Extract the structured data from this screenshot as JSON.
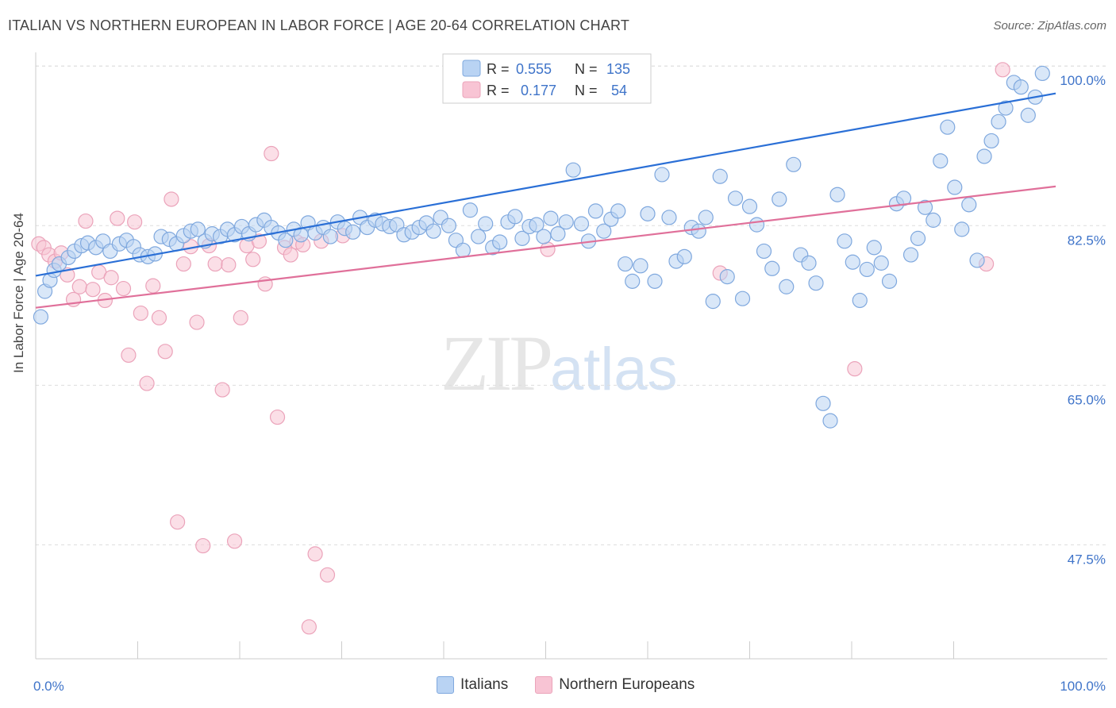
{
  "title": "ITALIAN VS NORTHERN EUROPEAN IN LABOR FORCE | AGE 20-64 CORRELATION CHART",
  "source": "Source: ZipAtlas.com",
  "watermark": {
    "zip": "ZIP",
    "atlas": "atlas"
  },
  "colors": {
    "italians_fill": "#b9d3f3",
    "italians_stroke": "#7fa8de",
    "italians_line": "#2a6fd6",
    "northern_fill": "#f8c4d4",
    "northern_stroke": "#eba3ba",
    "northern_line": "#e0709a",
    "axis_text": "#3f74c9",
    "grid": "#dddddd"
  },
  "legend": {
    "rows": [
      {
        "r_label": "R =",
        "r_value": "0.555",
        "n_label": "N =",
        "n_value": "135"
      },
      {
        "r_label": "R =",
        "r_value": "0.177",
        "n_label": "N =",
        "n_value": "54"
      }
    ]
  },
  "bottom_legend": [
    "Italians",
    "Northern Europeans"
  ],
  "chart_data": {
    "type": "scatter",
    "title": "ITALIAN VS NORTHERN EUROPEAN IN LABOR FORCE | AGE 20-64 CORRELATION CHART",
    "xlabel": "",
    "ylabel": "In Labor Force | Age 20-64",
    "xlim": [
      0,
      100
    ],
    "ylim": [
      35,
      101.5
    ],
    "x_tick_labels": [
      "0.0%",
      "100.0%"
    ],
    "y_ticks": [
      47.5,
      65.0,
      82.5,
      100.0
    ],
    "y_tick_labels": [
      "47.5%",
      "65.0%",
      "82.5%",
      "100.0%"
    ],
    "grid": true,
    "legend_position": "top-center",
    "series": [
      {
        "name": "Italians",
        "r": 0.555,
        "n": 135,
        "trend": {
          "x": [
            0,
            100
          ],
          "y": [
            77.0,
            97.0
          ]
        },
        "points": [
          [
            0.5,
            72.5
          ],
          [
            0.9,
            75.3
          ],
          [
            1.4,
            76.5
          ],
          [
            1.8,
            77.6
          ],
          [
            2.3,
            78.3
          ],
          [
            3.2,
            79
          ],
          [
            3.8,
            79.7
          ],
          [
            4.5,
            80.3
          ],
          [
            5.1,
            80.6
          ],
          [
            5.9,
            80.1
          ],
          [
            6.6,
            80.8
          ],
          [
            7.3,
            79.7
          ],
          [
            8.2,
            80.5
          ],
          [
            8.9,
            80.9
          ],
          [
            9.6,
            80.2
          ],
          [
            10.2,
            79.3
          ],
          [
            11.0,
            79.1
          ],
          [
            11.7,
            79.4
          ],
          [
            12.3,
            81.3
          ],
          [
            13.1,
            81
          ],
          [
            13.8,
            80.5
          ],
          [
            14.5,
            81.4
          ],
          [
            15.2,
            81.9
          ],
          [
            15.9,
            82.1
          ],
          [
            16.6,
            80.8
          ],
          [
            17.3,
            81.6
          ],
          [
            18.1,
            81.3
          ],
          [
            18.8,
            82.1
          ],
          [
            19.5,
            81.5
          ],
          [
            20.2,
            82.4
          ],
          [
            20.9,
            81.6
          ],
          [
            21.6,
            82.6
          ],
          [
            22.4,
            83.1
          ],
          [
            23.1,
            82.3
          ],
          [
            23.8,
            81.7
          ],
          [
            24.5,
            80.9
          ],
          [
            25.3,
            82.1
          ],
          [
            26.0,
            81.5
          ],
          [
            26.7,
            82.8
          ],
          [
            27.4,
            81.7
          ],
          [
            28.2,
            82.3
          ],
          [
            28.9,
            81.3
          ],
          [
            29.6,
            82.9
          ],
          [
            30.3,
            82.2
          ],
          [
            31.1,
            81.8
          ],
          [
            31.8,
            83.4
          ],
          [
            32.5,
            82.3
          ],
          [
            33.3,
            83.1
          ],
          [
            34.0,
            82.7
          ],
          [
            34.7,
            82.4
          ],
          [
            35.4,
            82.6
          ],
          [
            36.1,
            81.5
          ],
          [
            36.9,
            81.8
          ],
          [
            37.6,
            82.3
          ],
          [
            38.3,
            82.8
          ],
          [
            39.0,
            81.9
          ],
          [
            39.7,
            83.4
          ],
          [
            40.5,
            82.5
          ],
          [
            41.2,
            80.9
          ],
          [
            41.9,
            79.8
          ],
          [
            42.6,
            84.2
          ],
          [
            43.4,
            81.3
          ],
          [
            44.1,
            82.7
          ],
          [
            44.8,
            80.1
          ],
          [
            45.5,
            80.7
          ],
          [
            46.3,
            82.9
          ],
          [
            47.0,
            83.5
          ],
          [
            47.7,
            81.1
          ],
          [
            48.4,
            82.4
          ],
          [
            49.1,
            82.6
          ],
          [
            49.8,
            81.3
          ],
          [
            50.5,
            83.3
          ],
          [
            51.2,
            81.6
          ],
          [
            52.0,
            82.9
          ],
          [
            52.7,
            88.6
          ],
          [
            53.5,
            82.7
          ],
          [
            54.2,
            80.8
          ],
          [
            54.9,
            84.1
          ],
          [
            55.7,
            81.9
          ],
          [
            56.4,
            83.2
          ],
          [
            57.1,
            84.1
          ],
          [
            57.8,
            78.3
          ],
          [
            58.5,
            76.4
          ],
          [
            59.3,
            78.1
          ],
          [
            60.0,
            83.8
          ],
          [
            60.7,
            76.4
          ],
          [
            61.4,
            88.1
          ],
          [
            62.1,
            83.4
          ],
          [
            62.8,
            78.6
          ],
          [
            63.6,
            79.1
          ],
          [
            64.3,
            82.3
          ],
          [
            65.0,
            81.9
          ],
          [
            65.7,
            83.4
          ],
          [
            66.4,
            74.2
          ],
          [
            67.1,
            87.9
          ],
          [
            67.8,
            76.9
          ],
          [
            68.6,
            85.5
          ],
          [
            69.3,
            74.5
          ],
          [
            70.0,
            84.6
          ],
          [
            70.7,
            82.6
          ],
          [
            71.4,
            79.7
          ],
          [
            72.2,
            77.8
          ],
          [
            72.9,
            85.4
          ],
          [
            73.6,
            75.8
          ],
          [
            74.3,
            89.2
          ],
          [
            75.0,
            79.3
          ],
          [
            75.8,
            78.4
          ],
          [
            76.5,
            76.2
          ],
          [
            77.2,
            63.0
          ],
          [
            77.9,
            61.1
          ],
          [
            78.6,
            85.9
          ],
          [
            79.3,
            80.8
          ],
          [
            80.1,
            78.5
          ],
          [
            80.8,
            74.3
          ],
          [
            81.5,
            77.7
          ],
          [
            82.2,
            80.1
          ],
          [
            82.9,
            78.4
          ],
          [
            83.7,
            76.4
          ],
          [
            84.4,
            84.9
          ],
          [
            85.1,
            85.5
          ],
          [
            85.8,
            79.3
          ],
          [
            86.5,
            81.1
          ],
          [
            87.2,
            84.5
          ],
          [
            88.0,
            83.1
          ],
          [
            88.7,
            89.6
          ],
          [
            89.4,
            93.3
          ],
          [
            90.1,
            86.7
          ],
          [
            90.8,
            82.1
          ],
          [
            91.5,
            84.8
          ],
          [
            92.3,
            78.7
          ],
          [
            93.0,
            90.1
          ],
          [
            93.7,
            91.8
          ],
          [
            94.4,
            93.9
          ],
          [
            95.1,
            95.4
          ],
          [
            95.9,
            98.2
          ],
          [
            96.6,
            97.7
          ],
          [
            97.3,
            94.6
          ],
          [
            98.0,
            96.6
          ],
          [
            98.7,
            99.2
          ]
        ]
      },
      {
        "name": "Northern Europeans",
        "r": 0.177,
        "n": 54,
        "trend": {
          "x": [
            0,
            100
          ],
          "y": [
            73.5,
            86.8
          ]
        },
        "points": [
          [
            0.3,
            80.5
          ],
          [
            0.8,
            80.1
          ],
          [
            1.3,
            79.3
          ],
          [
            1.9,
            78.6
          ],
          [
            2.5,
            79.5
          ],
          [
            3.1,
            77.1
          ],
          [
            3.7,
            74.4
          ],
          [
            4.3,
            75.8
          ],
          [
            4.9,
            83
          ],
          [
            5.6,
            75.5
          ],
          [
            6.2,
            77.4
          ],
          [
            6.8,
            74.3
          ],
          [
            7.4,
            76.8
          ],
          [
            8.0,
            83.3
          ],
          [
            8.6,
            75.6
          ],
          [
            9.1,
            68.3
          ],
          [
            9.7,
            82.9
          ],
          [
            10.3,
            72.9
          ],
          [
            10.9,
            65.2
          ],
          [
            11.5,
            75.9
          ],
          [
            12.1,
            72.4
          ],
          [
            12.7,
            68.7
          ],
          [
            13.3,
            85.4
          ],
          [
            13.9,
            50.0
          ],
          [
            14.5,
            78.3
          ],
          [
            15.2,
            80.2
          ],
          [
            15.8,
            71.9
          ],
          [
            16.4,
            47.4
          ],
          [
            17.0,
            80.3
          ],
          [
            17.6,
            78.3
          ],
          [
            18.3,
            64.5
          ],
          [
            18.9,
            78.2
          ],
          [
            19.5,
            47.9
          ],
          [
            20.1,
            72.4
          ],
          [
            20.7,
            80.3
          ],
          [
            21.3,
            78.8
          ],
          [
            21.9,
            80.8
          ],
          [
            22.5,
            76.1
          ],
          [
            23.1,
            90.4
          ],
          [
            23.7,
            61.5
          ],
          [
            24.4,
            80.1
          ],
          [
            25.0,
            79.3
          ],
          [
            25.6,
            80.7
          ],
          [
            26.2,
            80.4
          ],
          [
            26.8,
            38.5
          ],
          [
            27.4,
            46.5
          ],
          [
            28.0,
            80.8
          ],
          [
            28.6,
            44.2
          ],
          [
            30.1,
            81.4
          ],
          [
            50.2,
            79.9
          ],
          [
            67.1,
            77.3
          ],
          [
            80.3,
            66.8
          ],
          [
            93.2,
            78.3
          ],
          [
            94.8,
            99.6
          ]
        ]
      }
    ]
  }
}
